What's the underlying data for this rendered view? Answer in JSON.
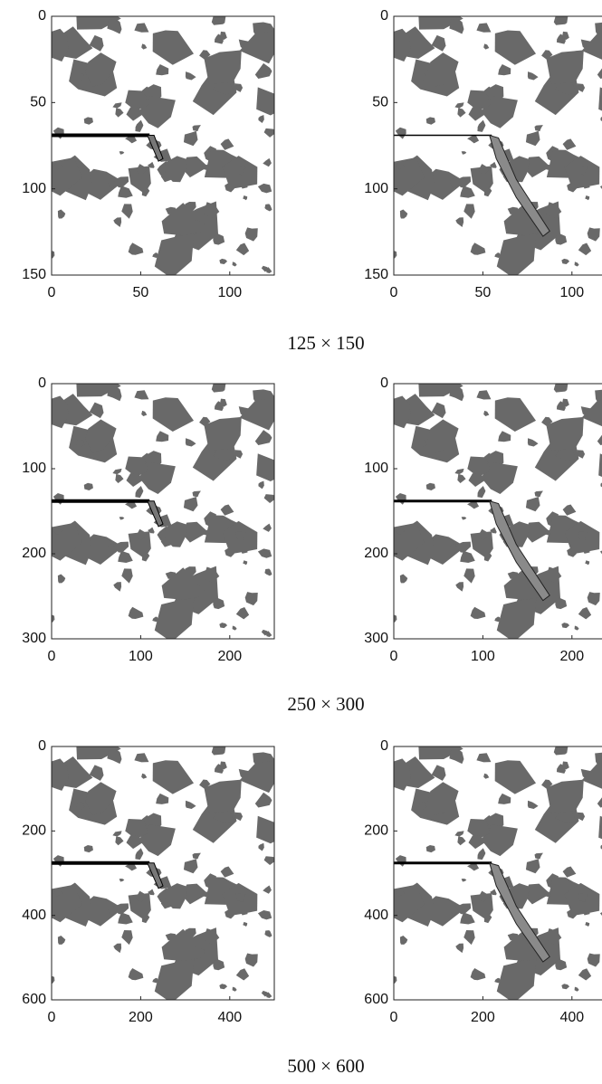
{
  "rows": [
    {
      "caption": "125 × 150",
      "plots": [
        {
          "xlim": [
            0,
            125
          ],
          "ylim": [
            0,
            150
          ],
          "xticks": [
            0,
            50,
            100
          ],
          "yticks": [
            0,
            50,
            100,
            150
          ]
        },
        {
          "xlim": [
            0,
            125
          ],
          "ylim": [
            0,
            150
          ],
          "xticks": [
            0,
            50,
            100
          ],
          "yticks": [
            0,
            50,
            100,
            150
          ]
        }
      ]
    },
    {
      "caption": "250 × 300",
      "plots": [
        {
          "xlim": [
            0,
            250
          ],
          "ylim": [
            0,
            300
          ],
          "xticks": [
            0,
            100,
            200
          ],
          "yticks": [
            0,
            100,
            200,
            300
          ]
        },
        {
          "xlim": [
            0,
            250
          ],
          "ylim": [
            0,
            300
          ],
          "xticks": [
            0,
            100,
            200
          ],
          "yticks": [
            0,
            100,
            200,
            300
          ]
        }
      ]
    },
    {
      "caption": "500 × 600",
      "plots": [
        {
          "xlim": [
            0,
            500
          ],
          "ylim": [
            0,
            600
          ],
          "xticks": [
            0,
            200,
            400
          ],
          "yticks": [
            0,
            200,
            400,
            600
          ]
        },
        {
          "xlim": [
            0,
            500
          ],
          "ylim": [
            0,
            600
          ],
          "xticks": [
            0,
            200,
            400
          ],
          "yticks": [
            0,
            200,
            400,
            600
          ]
        }
      ]
    }
  ]
}
